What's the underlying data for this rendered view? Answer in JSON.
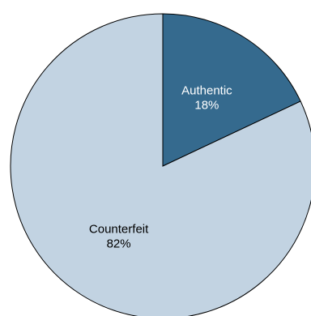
{
  "chart_data": {
    "type": "pie",
    "title": "",
    "start_angle_deg": 0,
    "direction": "clockwise",
    "slices": [
      {
        "label": "Authentic",
        "value": 18,
        "value_label": "18%",
        "color": "#356a8e",
        "text_color": "#ffffff"
      },
      {
        "label": "Counterfeit",
        "value": 82,
        "value_label": "82%",
        "color": "#c2d3e2",
        "text_color": "#000000"
      }
    ]
  }
}
